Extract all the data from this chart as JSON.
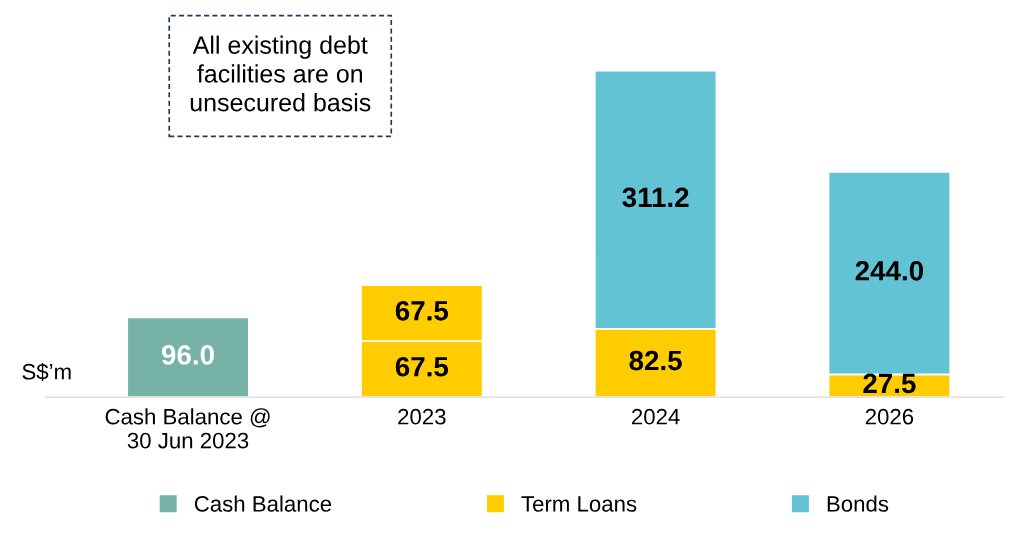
{
  "chart_data": {
    "type": "bar",
    "stacked": true,
    "ylabel": "S$’m",
    "categories": [
      "Cash Balance @\n30 Jun 2023",
      "2023",
      "2024",
      "2026"
    ],
    "series": [
      {
        "name": "Cash Balance",
        "color": "#76b3a6",
        "values": [
          96.0,
          null,
          null,
          null
        ],
        "value_labels": [
          "96.0",
          null,
          null,
          null
        ]
      },
      {
        "name": "Term Loans",
        "color": "#ffcc00",
        "values": [
          null,
          67.5,
          82.5,
          27.5
        ],
        "value_labels": [
          null,
          "67.5",
          "82.5",
          "27.5"
        ]
      },
      {
        "color": "#ffcc00",
        "values": [
          null,
          67.5,
          null,
          null
        ],
        "value_labels": [
          null,
          "67.5",
          null,
          null
        ]
      },
      {
        "name": "Bonds",
        "color": "#62c3d4",
        "values": [
          null,
          null,
          311.2,
          244.0
        ],
        "value_labels": [
          null,
          null,
          "311.2",
          "244.0"
        ]
      }
    ],
    "legend": "bottom",
    "grid": false,
    "tick_labels": "x",
    "annotations": [
      "All existing debt\nfacilities are on\nunsecured basis"
    ]
  }
}
